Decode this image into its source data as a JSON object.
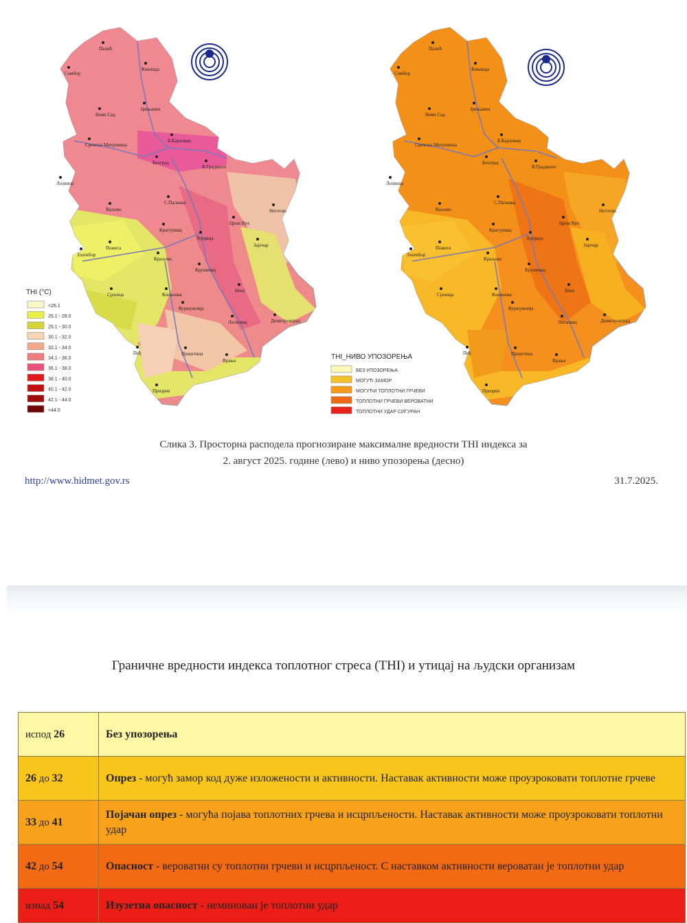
{
  "maps": {
    "left_legend": {
      "title": "ТHI (°C)",
      "items": [
        {
          "label": "<26.1",
          "color": "#fbf8c8"
        },
        {
          "label": "26.1 - 28.0",
          "color": "#eef04a"
        },
        {
          "label": "28.1 - 30.0",
          "color": "#d4d63c"
        },
        {
          "label": "30.1 - 32.0",
          "color": "#f6d4b4"
        },
        {
          "label": "32.1 - 34.0",
          "color": "#f4a98e"
        },
        {
          "label": "34.1 - 36.0",
          "color": "#ef7d80"
        },
        {
          "label": "36.1 - 38.0",
          "color": "#e8507a"
        },
        {
          "label": "38.1 - 40.0",
          "color": "#e21a1a"
        },
        {
          "label": "40.1 - 42.0",
          "color": "#c41010"
        },
        {
          "label": "42.1 - 44.0",
          "color": "#9e0b0b"
        },
        {
          "label": ">44.0",
          "color": "#6e0505"
        }
      ]
    },
    "right_legend": {
      "title": "ТHI_НИВО УПОЗОРЕЊА",
      "items": [
        {
          "label": "БЕЗ УПОЗОРЕЊА",
          "color": "#fdf7b8"
        },
        {
          "label": "МОГУЋ ЗАМОР",
          "color": "#f5c12a"
        },
        {
          "label": "МОГУЋИ ТОПЛОТНИ ГРЧЕВИ",
          "color": "#f59a1a"
        },
        {
          "label": "ТОПЛОТНИ ГРЧЕВИ ВЕРОВАТНИ",
          "color": "#ef6a12"
        },
        {
          "label": "ТОПЛОТНИ УДАР СИГУРАН",
          "color": "#e8231a"
        }
      ]
    },
    "cities": [
      "Палић",
      "Сомбор",
      "Кикинда",
      "Зрењанин",
      "Нови Сад",
      "Сремска Митровица",
      "Б.Карловац",
      "Београд",
      "В.Градиште",
      "Лозница",
      "Ваљево",
      "С.Паланка",
      "Неготин",
      "Црни Врх",
      "Крагујевац",
      "Ћуприја",
      "Зајечар",
      "Пожега",
      "Златибор",
      "Краљево",
      "Крушевац",
      "Сјеница",
      "Копаоник",
      "Куршумлија",
      "Ниш",
      "Лесковац",
      "Димитровград",
      "Пеђ",
      "Приштина",
      "Врање",
      "Призрен"
    ]
  },
  "caption_line1": "Слика 3. Просторна расподела прогнозиране максималне вредности ТHI индекса за",
  "caption_line2": "2. август 2025. године (лево) и ниво упозорења (десно)",
  "url": "http://www.hidmet.gov.rs",
  "date": "31.7.2025.",
  "table_title": "Граничне вредности индекса топлотног стреса (THI) и утицај на људски организам",
  "rows": [
    {
      "range_pre": "испод",
      "range_a": "26",
      "range_mid": "",
      "range_b": "",
      "title": "Без упозорења",
      "text": "",
      "bg": "#fdf7a6"
    },
    {
      "range_pre": "",
      "range_a": "26",
      "range_mid": " до ",
      "range_b": "32",
      "title": "Опрез",
      "text": " - могућ замор код дуже изложености и активности. Наставак активности може проузроковати топлотне грчеве",
      "bg": "#f8c51c"
    },
    {
      "range_pre": "",
      "range_a": "33",
      "range_mid": " до ",
      "range_b": "41",
      "title": "Појачан опрез",
      "text": " - могућа појава топлотних грчева и исцрпљености. Наставак активности може проузроковати топлотни удар",
      "bg": "#f7a21a"
    },
    {
      "range_pre": "",
      "range_a": "42",
      "range_mid": " до ",
      "range_b": "54",
      "title": "Опасност",
      "text": " - вероватни су топлотни грчеви и исцрпљеност. С наставком активности вероватан је топлотни удар",
      "bg": "#f26a14"
    },
    {
      "range_pre": "изнад",
      "range_a": "54",
      "range_mid": "",
      "range_b": "",
      "title": "Изузетна опасност",
      "text": " - неминован је топлотни удар",
      "bg": "#ea1d17"
    }
  ]
}
